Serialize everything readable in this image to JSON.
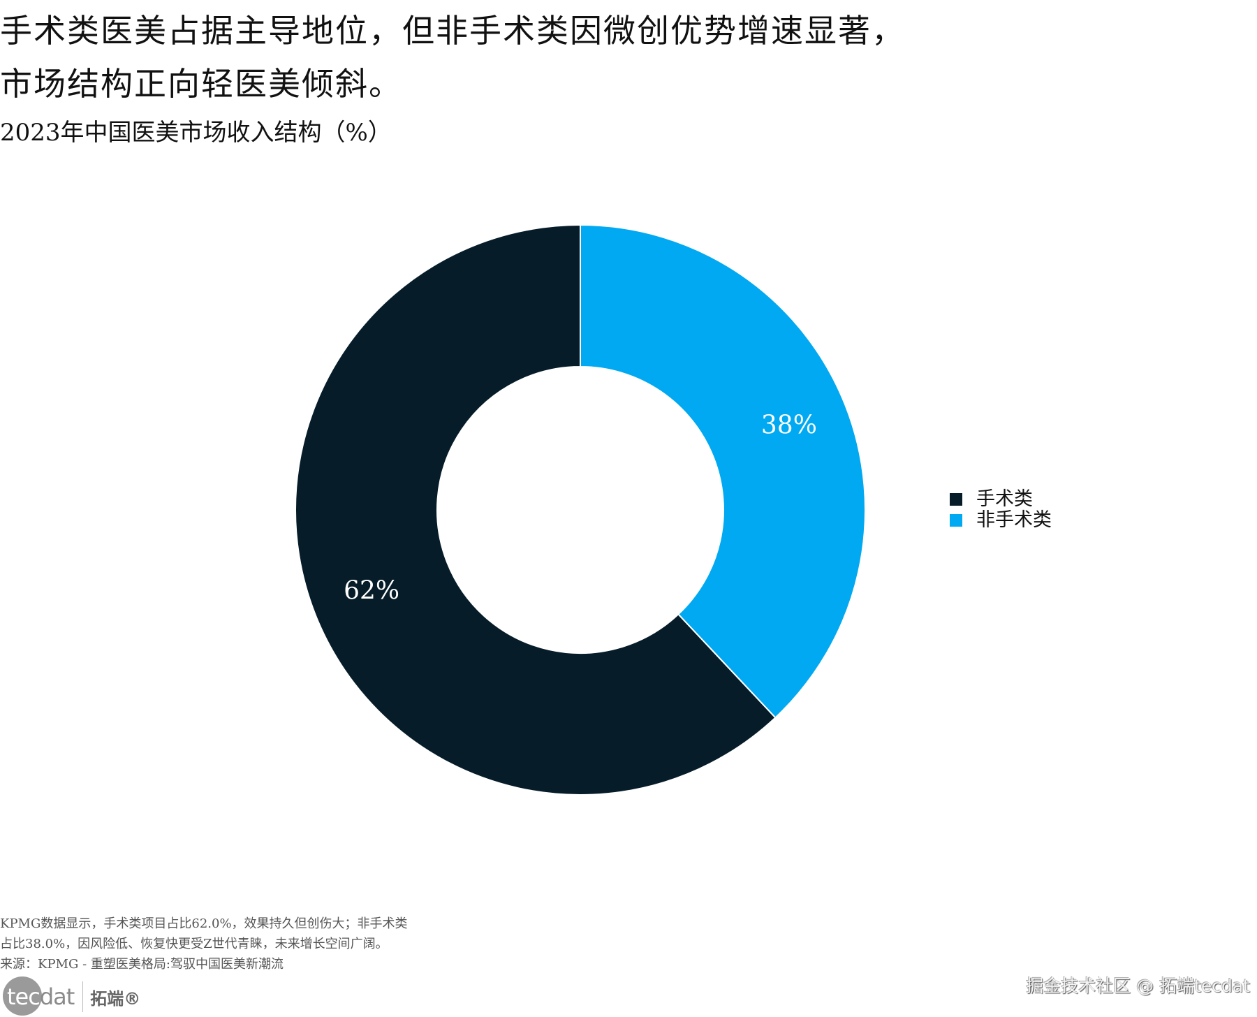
{
  "header": {
    "title_line1": "手术类医美占据主导地位，但非手术类因微创优势增速显著，",
    "title_line2": "市场结构正向轻医美倾斜。",
    "subtitle": "2023年中国医美市场收入结构（%）"
  },
  "chart_data": {
    "type": "pie",
    "style": "donut",
    "title": "2023年中国医美市场收入结构（%）",
    "categories": [
      "手术类",
      "非手术类"
    ],
    "values": [
      62,
      38
    ],
    "labels": [
      "62%",
      "38%"
    ],
    "colors": [
      "#061c29",
      "#00a9f1"
    ],
    "legend_position": "right"
  },
  "legend": {
    "items": [
      {
        "label": "手术类",
        "color": "#061c29"
      },
      {
        "label": "非手术类",
        "color": "#00a9f1"
      }
    ]
  },
  "footer": {
    "note_line1": "KPMG数据显示，手术类项目占比62.0%，效果持久但创伤大；非手术类",
    "note_line2": "占比38.0%，因风险低、恢复快更受Z世代青睐，未来增长空间广阔。",
    "source": "来源：KPMG - 重塑医美格局:驾驭中国医美新潮流"
  },
  "logo": {
    "text_a": "tec",
    "text_b": "dat",
    "cn": "拓端®"
  },
  "watermark": "掘金技术社区 @ 拓端tecdat"
}
